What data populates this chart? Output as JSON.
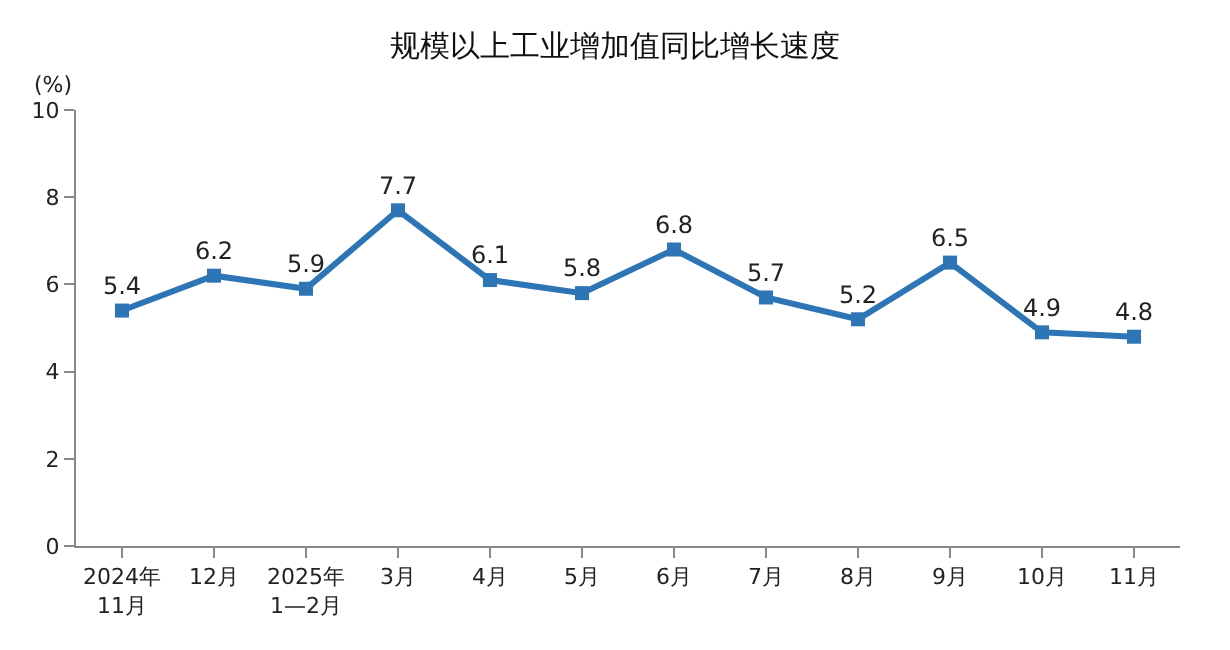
{
  "chart_data": {
    "type": "line",
    "title": "规模以上工业增加值同比增长速度",
    "ylabel": "(%)",
    "categories": [
      "2024年\n11月",
      "12月",
      "2025年\n1—2月",
      "3月",
      "4月",
      "5月",
      "6月",
      "7月",
      "8月",
      "9月",
      "10月",
      "11月"
    ],
    "series": [
      {
        "color": "#2e75b6",
        "values": [
          5.4,
          6.2,
          5.9,
          7.7,
          6.1,
          5.8,
          6.8,
          5.7,
          5.2,
          6.5,
          4.9,
          4.8
        ]
      }
    ],
    "ylim": [
      0,
      10
    ],
    "yticks": [
      0,
      2,
      4,
      6,
      8,
      10
    ],
    "marker": "square",
    "line_style": "solid",
    "data_labels": true
  }
}
